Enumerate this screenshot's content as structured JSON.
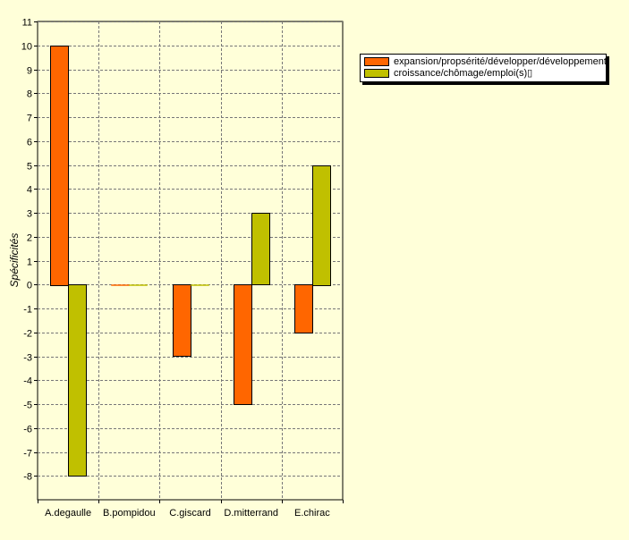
{
  "chart_data": {
    "type": "bar",
    "ylabel": "Spécificités",
    "ylim": [
      -9,
      11
    ],
    "yticks": [
      11,
      10,
      9,
      8,
      7,
      6,
      5,
      4,
      3,
      2,
      1,
      0,
      -1,
      -2,
      -3,
      -4,
      -5,
      -6,
      -7,
      -8
    ],
    "grid": true,
    "legend_position": "top-right",
    "categories": [
      "A.degaulle",
      "B.pompidou",
      "C.giscard",
      "D.mitterrand",
      "E.chirac"
    ],
    "series": [
      {
        "name": "expansion/propsérité/développer/développement",
        "values": [
          10,
          0,
          -3,
          -5,
          -2
        ],
        "color": "#ff6600"
      },
      {
        "name": "croissance/chômage/emploi(s)▯",
        "values": [
          -8,
          0,
          0,
          3,
          5
        ],
        "color": "#c0c000"
      }
    ]
  }
}
